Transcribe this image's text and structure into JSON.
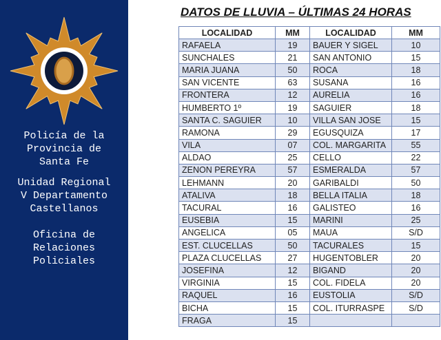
{
  "sidebar": {
    "logo_text": "POLICIA DE LA PROVINCIA DE SANTA FE",
    "colors": {
      "background": "#0b2a6b",
      "star": "#d08a2a"
    },
    "line1": "Policía de la",
    "line2": "Provincia de",
    "line3": "Santa Fe",
    "line4": "Unidad Regional",
    "line5": "V Departamento",
    "line6": "Castellanos",
    "line7": "Oficina de",
    "line8": "Relaciones",
    "line9": "Policiales"
  },
  "title": "DATOS DE LLUVIA – ÚLTIMAS 24 HORAS",
  "table": {
    "headers": [
      "LOCALIDAD",
      "MM",
      "LOCALIDAD",
      "MM"
    ],
    "rows": [
      [
        "RAFAELA",
        "19",
        "BAUER Y SIGEL",
        "10"
      ],
      [
        "SUNCHALES",
        "21",
        "SAN ANTONIO",
        "15"
      ],
      [
        "MARIA JUANA",
        "50",
        "ROCA",
        "18"
      ],
      [
        "SAN VICENTE",
        "63",
        "SUSANA",
        "16"
      ],
      [
        "FRONTERA",
        "12",
        "AURELIA",
        "16"
      ],
      [
        "HUMBERTO 1º",
        "19",
        "SAGUIER",
        "18"
      ],
      [
        "SANTA C. SAGUIER",
        "10",
        "VILLA SAN JOSE",
        "15"
      ],
      [
        "RAMONA",
        "29",
        "EGUSQUIZA",
        "17"
      ],
      [
        "VILA",
        "07",
        "COL. MARGARITA",
        "55"
      ],
      [
        "ALDAO",
        "25",
        "CELLO",
        "22"
      ],
      [
        "ZENON PEREYRA",
        "57",
        "ESMERALDA",
        "57"
      ],
      [
        "LEHMANN",
        "20",
        "GARIBALDI",
        "50"
      ],
      [
        "ATALIVA",
        "18",
        "BELLA ITALIA",
        "18"
      ],
      [
        "TACURAL",
        "16",
        "GALISTEO",
        "16"
      ],
      [
        "EUSEBIA",
        "15",
        "MARINI",
        "25"
      ],
      [
        "ANGELICA",
        "05",
        "MAUA",
        "S/D"
      ],
      [
        "EST. CLUCELLAS",
        "50",
        "TACURALES",
        "15"
      ],
      [
        "PLAZA CLUCELLAS",
        "27",
        "HUGENTOBLER",
        "20"
      ],
      [
        "JOSEFINA",
        "12",
        "BIGAND",
        "20"
      ],
      [
        "VIRGINIA",
        "15",
        "COL. FIDELA",
        "20"
      ],
      [
        "RAQUEL",
        "16",
        "EUSTOLIA",
        "S/D"
      ],
      [
        "BICHA",
        "15",
        "COL. ITURRASPE",
        "S/D"
      ],
      [
        "FRAGA",
        "15",
        "",
        ""
      ]
    ]
  }
}
